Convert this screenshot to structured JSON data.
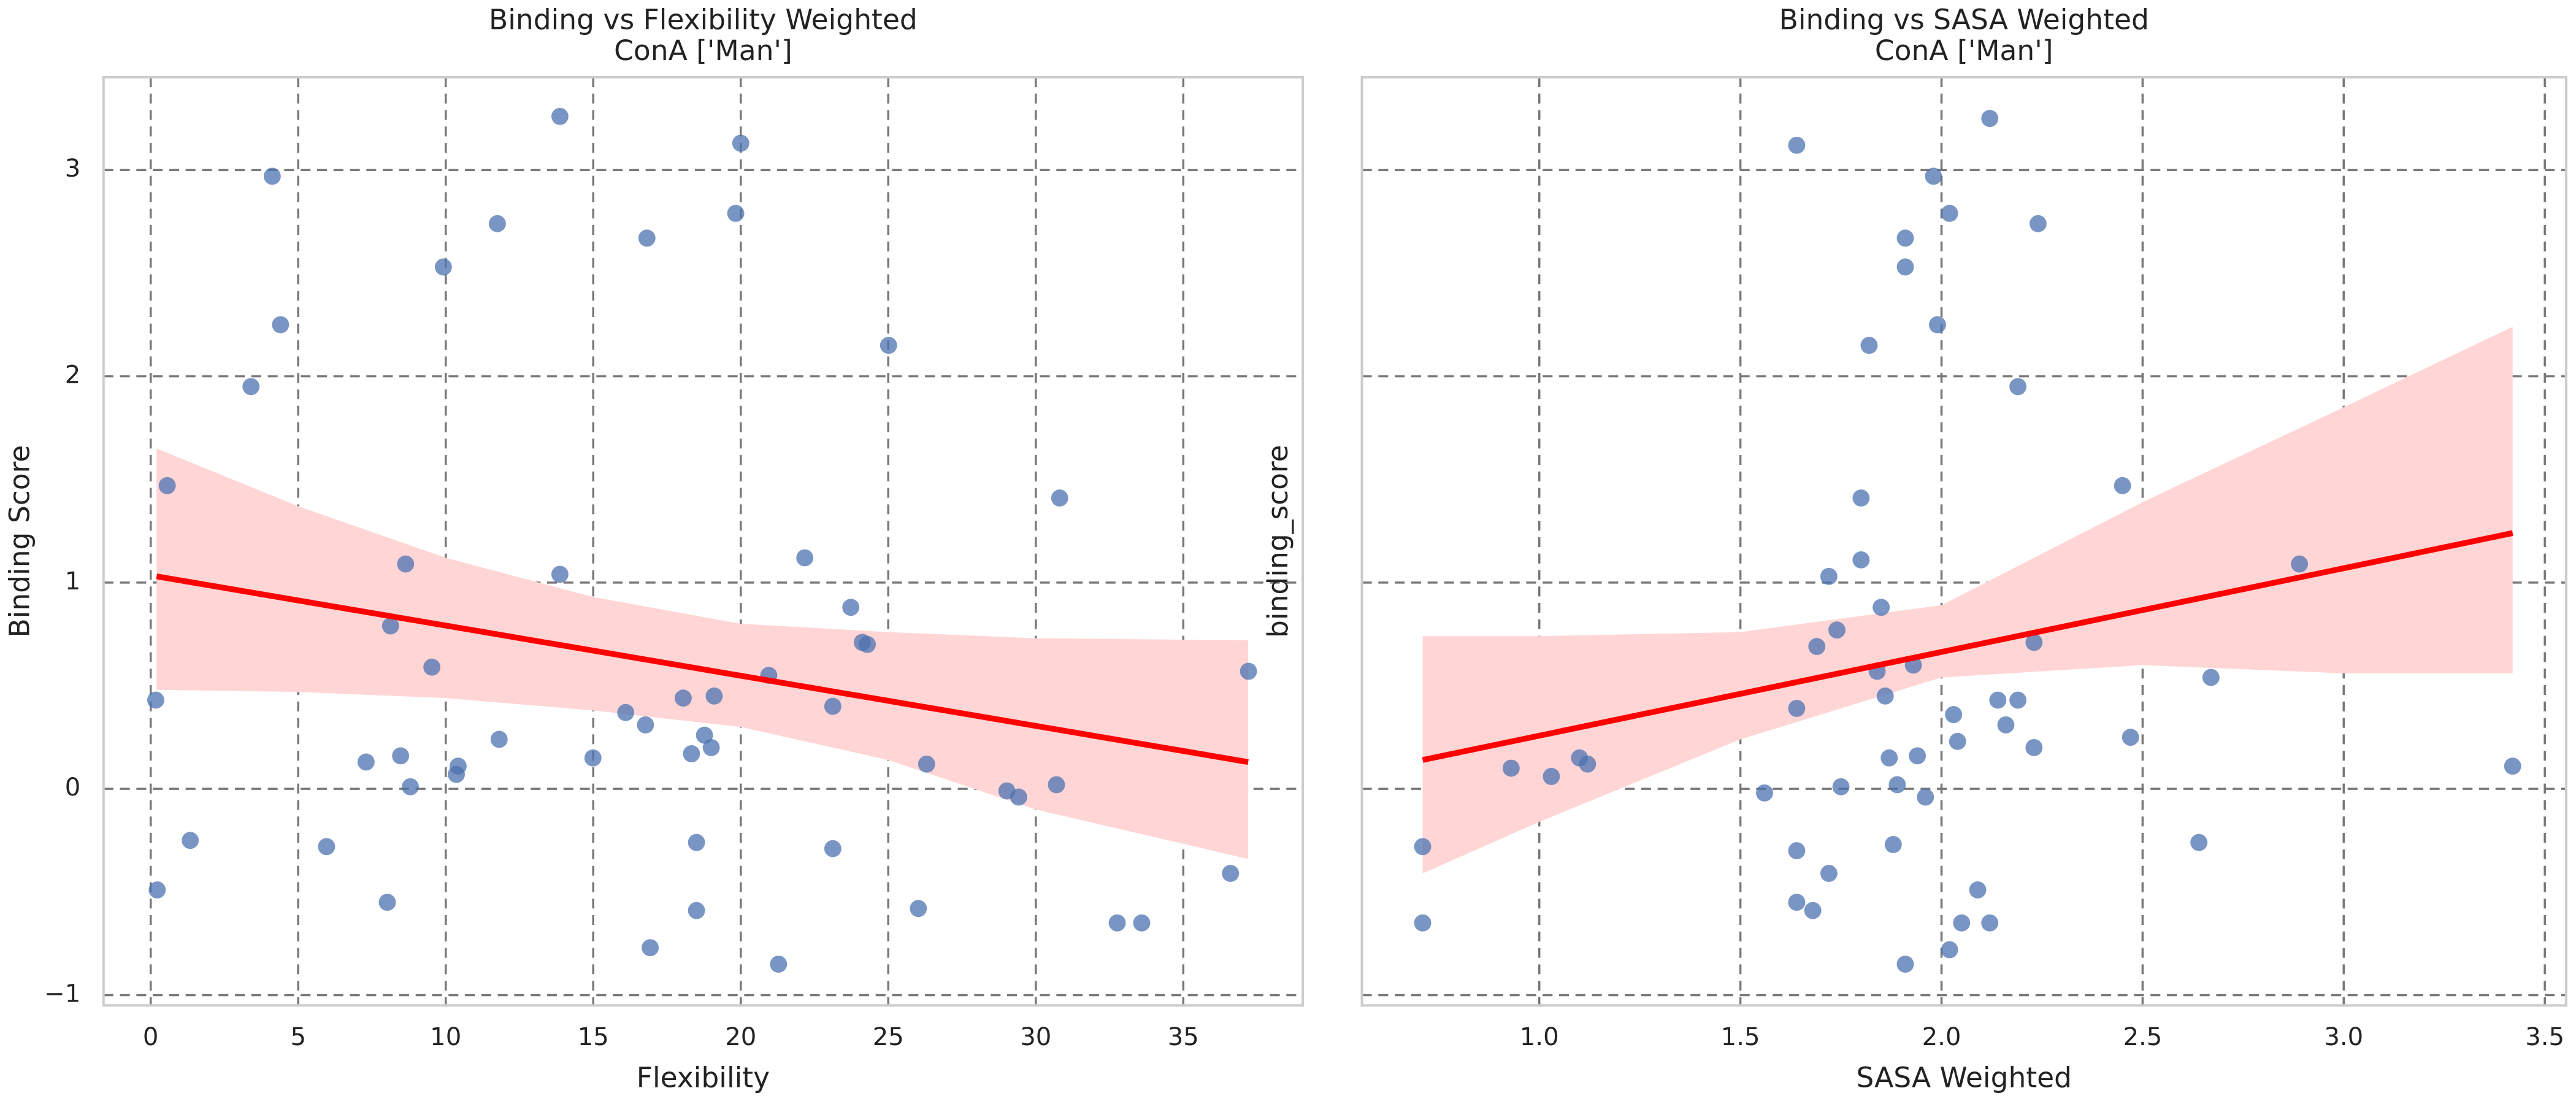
{
  "chart_data": [
    {
      "type": "scatter",
      "title": [
        "Binding vs Flexibility Weighted",
        "ConA ['Man']"
      ],
      "xlabel": "Flexibility",
      "ylabel": "Binding Score",
      "color": "#4c72b0",
      "grid": true,
      "show_ytick_labels": true,
      "xlim": [
        -1.6,
        39.05
      ],
      "ylim": [
        -1.05,
        3.45
      ],
      "xticks": [
        0,
        5,
        10,
        15,
        20,
        25,
        30,
        35
      ],
      "yticks": [
        {
          "value": -1,
          "label": "−1"
        },
        0,
        1,
        2,
        3
      ],
      "x": [
        0.17,
        0.22,
        0.56,
        1.34,
        3.4,
        4.12,
        4.4,
        5.96,
        7.3,
        8.02,
        8.13,
        8.47,
        8.64,
        8.8,
        9.53,
        9.92,
        10.36,
        10.42,
        11.75,
        11.81,
        13.87,
        13.87,
        14.99,
        16.1,
        16.77,
        16.82,
        16.93,
        18.05,
        18.33,
        18.5,
        18.5,
        18.77,
        19.0,
        19.1,
        19.83,
        20.0,
        20.95,
        21.28,
        22.17,
        23.12,
        23.12,
        23.73,
        24.12,
        24.29,
        25.01,
        26.02,
        26.3,
        29.02,
        29.42,
        30.7,
        30.81,
        32.76,
        33.59,
        36.6,
        37.21
      ],
      "values": [
        0.43,
        -0.49,
        1.47,
        -0.25,
        1.95,
        2.97,
        2.25,
        -0.28,
        0.13,
        -0.55,
        0.79,
        0.16,
        1.09,
        0.01,
        0.59,
        2.53,
        0.07,
        0.11,
        2.74,
        0.24,
        3.26,
        1.04,
        0.15,
        0.37,
        0.31,
        2.67,
        -0.77,
        0.44,
        0.17,
        -0.26,
        -0.59,
        0.26,
        0.2,
        0.45,
        2.79,
        3.13,
        0.55,
        -0.85,
        1.12,
        -0.29,
        0.4,
        0.88,
        0.71,
        0.7,
        2.15,
        -0.58,
        0.12,
        -0.01,
        -0.04,
        0.02,
        1.41,
        -0.65,
        -0.65,
        -0.41,
        0.57
      ],
      "fit": {
        "color": "#ff0000",
        "x": [
          0.2,
          37.2
        ],
        "values": [
          1.03,
          0.13
        ]
      },
      "ci": {
        "color": "#ffd5d5",
        "x": [
          0.2,
          5,
          10,
          15,
          20,
          25,
          30,
          37.2
        ],
        "lower": [
          0.48,
          0.47,
          0.44,
          0.38,
          0.3,
          0.14,
          -0.1,
          -0.34
        ],
        "upper": [
          1.65,
          1.37,
          1.12,
          0.93,
          0.8,
          0.76,
          0.73,
          0.72
        ]
      }
    },
    {
      "type": "scatter",
      "title": [
        "Binding vs SASA Weighted",
        "ConA ['Man']"
      ],
      "xlabel": "SASA Weighted",
      "ylabel": "binding_score",
      "color": "#4c72b0",
      "grid": true,
      "show_ytick_labels": false,
      "xlim": [
        0.559,
        3.553
      ],
      "ylim": [
        -1.05,
        3.45
      ],
      "xticks": [
        {
          "value": 1,
          "label": "1.0"
        },
        1.5,
        {
          "value": 2,
          "label": "2.0"
        },
        2.5,
        {
          "value": 3,
          "label": "3.0"
        },
        3.5
      ],
      "yticks": [
        -1,
        0,
        1,
        2,
        3
      ],
      "x": [
        0.71,
        0.71,
        0.93,
        1.03,
        1.1,
        1.12,
        1.56,
        1.64,
        1.64,
        1.64,
        1.64,
        1.68,
        1.69,
        1.72,
        1.72,
        1.74,
        1.75,
        1.8,
        1.8,
        1.82,
        1.84,
        1.85,
        1.86,
        1.87,
        1.88,
        1.89,
        1.91,
        1.91,
        1.91,
        1.93,
        1.94,
        1.96,
        1.98,
        1.99,
        2.02,
        2.02,
        2.03,
        2.04,
        2.05,
        2.09,
        2.12,
        2.12,
        2.14,
        2.16,
        2.19,
        2.19,
        2.23,
        2.23,
        2.24,
        2.45,
        2.47,
        2.64,
        2.67,
        2.89,
        3.42
      ],
      "values": [
        -0.65,
        -0.28,
        0.1,
        0.06,
        0.15,
        0.12,
        -0.02,
        3.12,
        0.39,
        -0.3,
        -0.55,
        -0.59,
        0.69,
        1.03,
        -0.41,
        0.77,
        0.01,
        1.11,
        1.41,
        2.15,
        0.57,
        0.88,
        0.45,
        0.15,
        -0.27,
        0.02,
        2.67,
        2.53,
        -0.85,
        0.6,
        0.16,
        -0.04,
        2.97,
        2.25,
        2.79,
        -0.78,
        0.36,
        0.23,
        -0.65,
        -0.49,
        -0.65,
        3.25,
        0.43,
        0.31,
        0.43,
        1.95,
        0.71,
        0.2,
        2.74,
        1.47,
        0.25,
        -0.26,
        0.54,
        1.09,
        0.11
      ],
      "fit": {
        "color": "#ff0000",
        "x": [
          0.71,
          3.42
        ],
        "values": [
          0.14,
          1.24
        ]
      },
      "ci": {
        "color": "#ffd5d5",
        "x": [
          0.71,
          1.0,
          1.5,
          2.0,
          2.5,
          3.0,
          3.42
        ],
        "lower": [
          -0.41,
          -0.16,
          0.24,
          0.54,
          0.6,
          0.56,
          0.56
        ],
        "upper": [
          0.74,
          0.74,
          0.76,
          0.89,
          1.39,
          1.85,
          2.24
        ]
      }
    }
  ]
}
